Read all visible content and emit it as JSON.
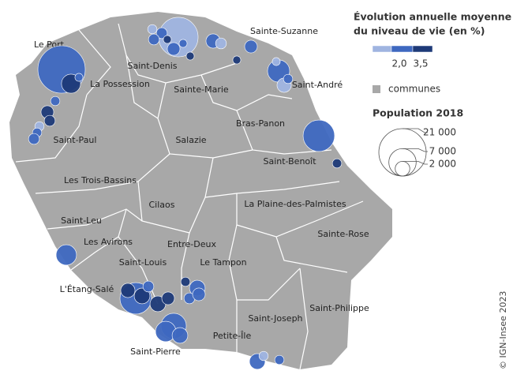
{
  "communes": [
    "Le Port",
    "Saint-Denis",
    "Sainte-Suzanne",
    "La Possession",
    "Sainte-Marie",
    "Saint-André",
    "Bras-Panon",
    "Saint-Paul",
    "Salazie",
    "Saint-Benoît",
    "Les Trois-Bassins",
    "Cilaos",
    "La Plaine-des-Palmistes",
    "Saint-Leu",
    "Sainte-Rose",
    "Les Avirons",
    "Entre-Deux",
    "Saint-Louis",
    "Le Tampon",
    "L'Étang-Salé",
    "Saint-Philippe",
    "Saint-Joseph",
    "Saint-Pierre",
    "Petite-Île"
  ],
  "legend_color": {
    "title_lines": [
      "Évolution annuelle moyenne",
      "du niveau de vie (en %)"
    ],
    "breaks": [
      {
        "value": 2.0,
        "label": "2,0"
      },
      {
        "value": 3.5,
        "label": "3,5"
      }
    ],
    "colors": [
      "#9fb4e0",
      "#3e68c0",
      "#1e3a78"
    ]
  },
  "legend_area": {
    "label": "communes",
    "color": "#a8a8a8"
  },
  "legend_size": {
    "title": "Population 2018",
    "sizes": [
      {
        "value": 21000,
        "label": "21 000"
      },
      {
        "value": 7000,
        "label": "7 000"
      },
      {
        "value": 2000,
        "label": "2 000"
      }
    ]
  },
  "bubbles": [
    {
      "population": 21000,
      "evolution": 2.8
    },
    {
      "population": 3400,
      "evolution": 4.2
    },
    {
      "population": 600,
      "evolution": 2.8
    },
    {
      "population": 14600,
      "evolution": 1.5
    },
    {
      "population": 800,
      "evolution": 1.5
    },
    {
      "population": 1100,
      "evolution": 2.8
    },
    {
      "population": 1100,
      "evolution": 2.8
    },
    {
      "population": 600,
      "evolution": 4.2
    },
    {
      "population": 1500,
      "evolution": 2.8
    },
    {
      "population": 600,
      "evolution": 2.8
    },
    {
      "population": 600,
      "evolution": 4.2
    },
    {
      "population": 1900,
      "evolution": 2.8
    },
    {
      "population": 1100,
      "evolution": 1.5
    },
    {
      "population": 1500,
      "evolution": 2.8
    },
    {
      "population": 600,
      "evolution": 4.2
    },
    {
      "population": 4600,
      "evolution": 2.8
    },
    {
      "population": 1900,
      "evolution": 1.5
    },
    {
      "population": 600,
      "evolution": 1.5
    },
    {
      "population": 800,
      "evolution": 2.8
    },
    {
      "population": 9300,
      "evolution": 2.8
    },
    {
      "population": 800,
      "evolution": 4.2
    },
    {
      "population": 800,
      "evolution": 2.8
    },
    {
      "population": 1500,
      "evolution": 4.2
    },
    {
      "population": 1100,
      "evolution": 4.2
    },
    {
      "population": 800,
      "evolution": 1.5
    },
    {
      "population": 800,
      "evolution": 2.8
    },
    {
      "population": 1100,
      "evolution": 2.8
    },
    {
      "population": 3900,
      "evolution": 2.8
    },
    {
      "population": 9300,
      "evolution": 2.8
    },
    {
      "population": 1900,
      "evolution": 4.2
    },
    {
      "population": 2300,
      "evolution": 4.2
    },
    {
      "population": 1100,
      "evolution": 2.8
    },
    {
      "population": 2300,
      "evolution": 4.2
    },
    {
      "population": 1500,
      "evolution": 4.2
    },
    {
      "population": 800,
      "evolution": 4.2
    },
    {
      "population": 2300,
      "evolution": 2.8
    },
    {
      "population": 1100,
      "evolution": 2.8
    },
    {
      "population": 1500,
      "evolution": 2.8
    },
    {
      "population": 6000,
      "evolution": 2.8
    },
    {
      "population": 3900,
      "evolution": 2.8
    },
    {
      "population": 2300,
      "evolution": 2.8
    },
    {
      "population": 2300,
      "evolution": 2.8
    },
    {
      "population": 800,
      "evolution": 1.5
    },
    {
      "population": 800,
      "evolution": 2.8
    }
  ],
  "copyright": "© IGN-Insee 2023"
}
